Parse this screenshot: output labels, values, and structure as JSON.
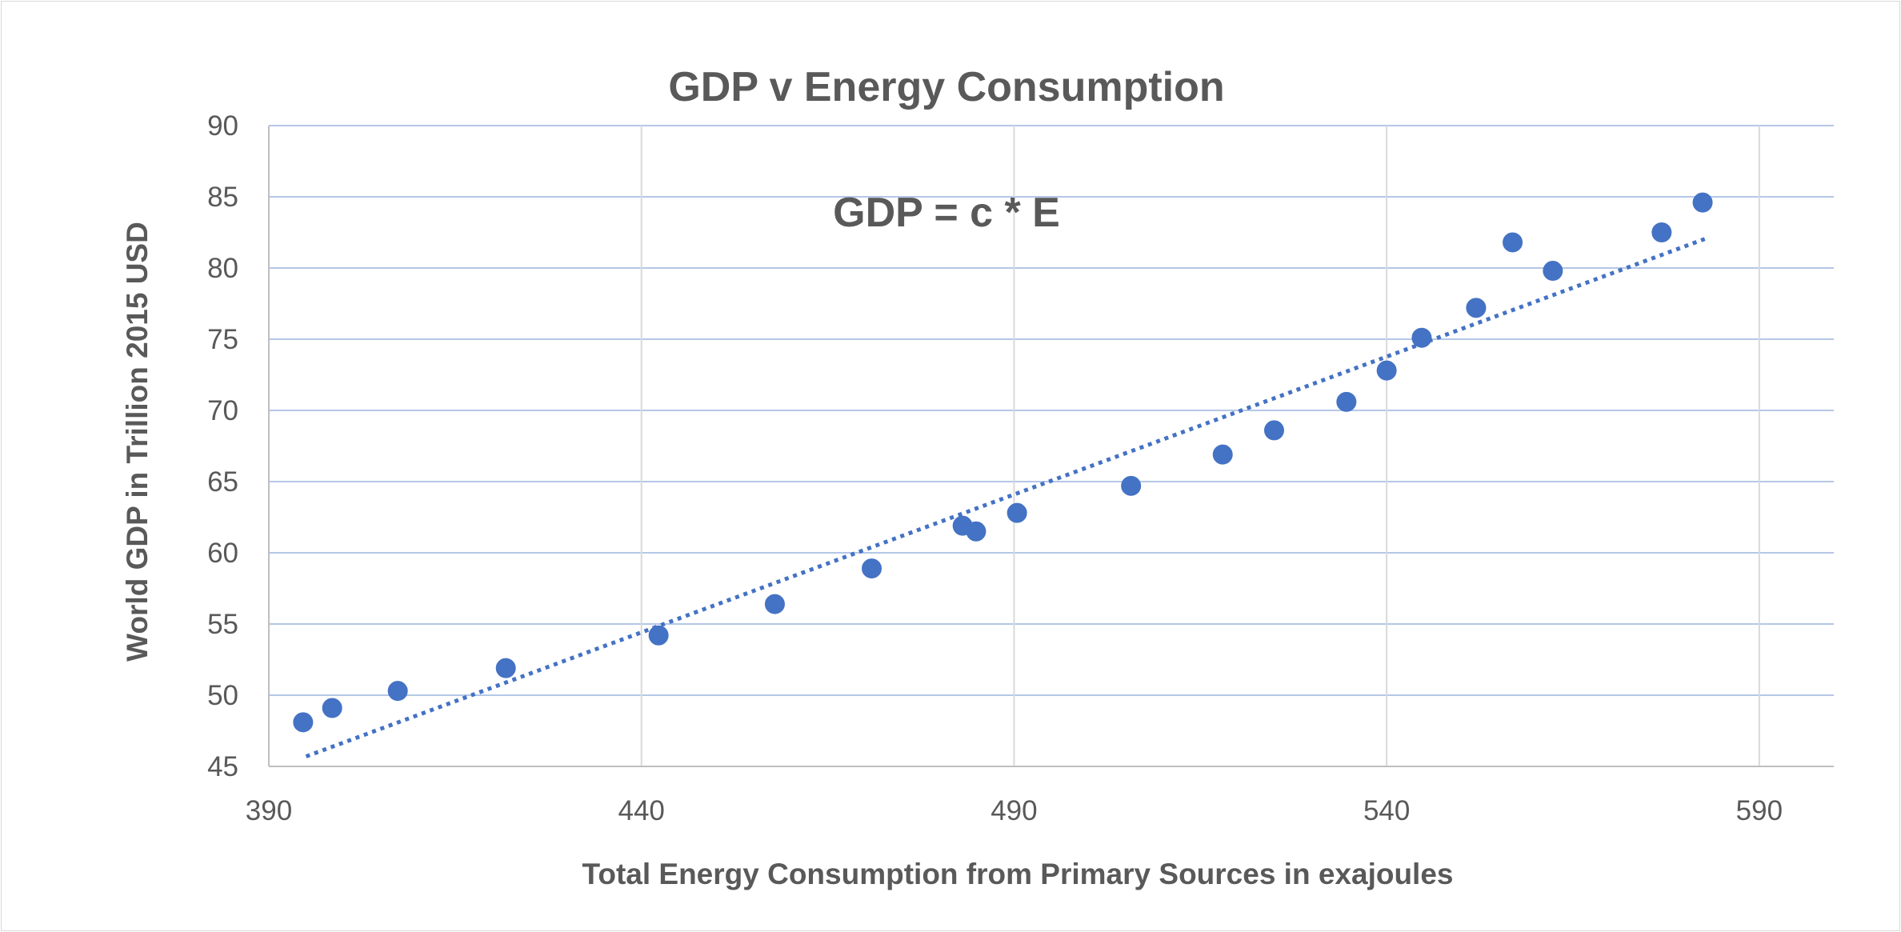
{
  "chart_data": {
    "type": "scatter",
    "title": "GDP v Energy Consumption",
    "annotation": "GDP = c * E",
    "xlabel": "Total Energy Consumption from Primary Sources in exajoules",
    "ylabel": "World GDP in  Trillion 2015 USD",
    "xlim": [
      390,
      600
    ],
    "ylim": [
      45,
      90
    ],
    "x_ticks": [
      390,
      440,
      490,
      540,
      590
    ],
    "y_ticks": [
      45,
      50,
      55,
      60,
      65,
      70,
      75,
      80,
      85,
      90
    ],
    "grid": {
      "vertical": true,
      "horizontal": true
    },
    "legend": "none",
    "series": [
      {
        "marker_color": "#4472c4",
        "points": [
          {
            "x": 394.6,
            "y": 48.1
          },
          {
            "x": 398.5,
            "y": 49.1
          },
          {
            "x": 407.3,
            "y": 50.3
          },
          {
            "x": 421.8,
            "y": 51.9
          },
          {
            "x": 442.3,
            "y": 54.2
          },
          {
            "x": 457.9,
            "y": 56.4
          },
          {
            "x": 470.9,
            "y": 58.9
          },
          {
            "x": 483.1,
            "y": 61.9
          },
          {
            "x": 484.9,
            "y": 61.5
          },
          {
            "x": 490.4,
            "y": 62.8
          },
          {
            "x": 505.7,
            "y": 64.7
          },
          {
            "x": 518.0,
            "y": 66.9
          },
          {
            "x": 524.9,
            "y": 68.6
          },
          {
            "x": 534.6,
            "y": 70.6
          },
          {
            "x": 540.0,
            "y": 72.8
          },
          {
            "x": 544.7,
            "y": 75.1
          },
          {
            "x": 552.0,
            "y": 77.2
          },
          {
            "x": 556.9,
            "y": 81.8
          },
          {
            "x": 562.3,
            "y": 79.8
          },
          {
            "x": 576.9,
            "y": 82.5
          },
          {
            "x": 582.4,
            "y": 84.6
          }
        ]
      }
    ],
    "trendline": {
      "style": "dotted",
      "color": "#4472c4",
      "x": [
        395,
        583
      ],
      "y": [
        45.7,
        82.1
      ]
    }
  }
}
